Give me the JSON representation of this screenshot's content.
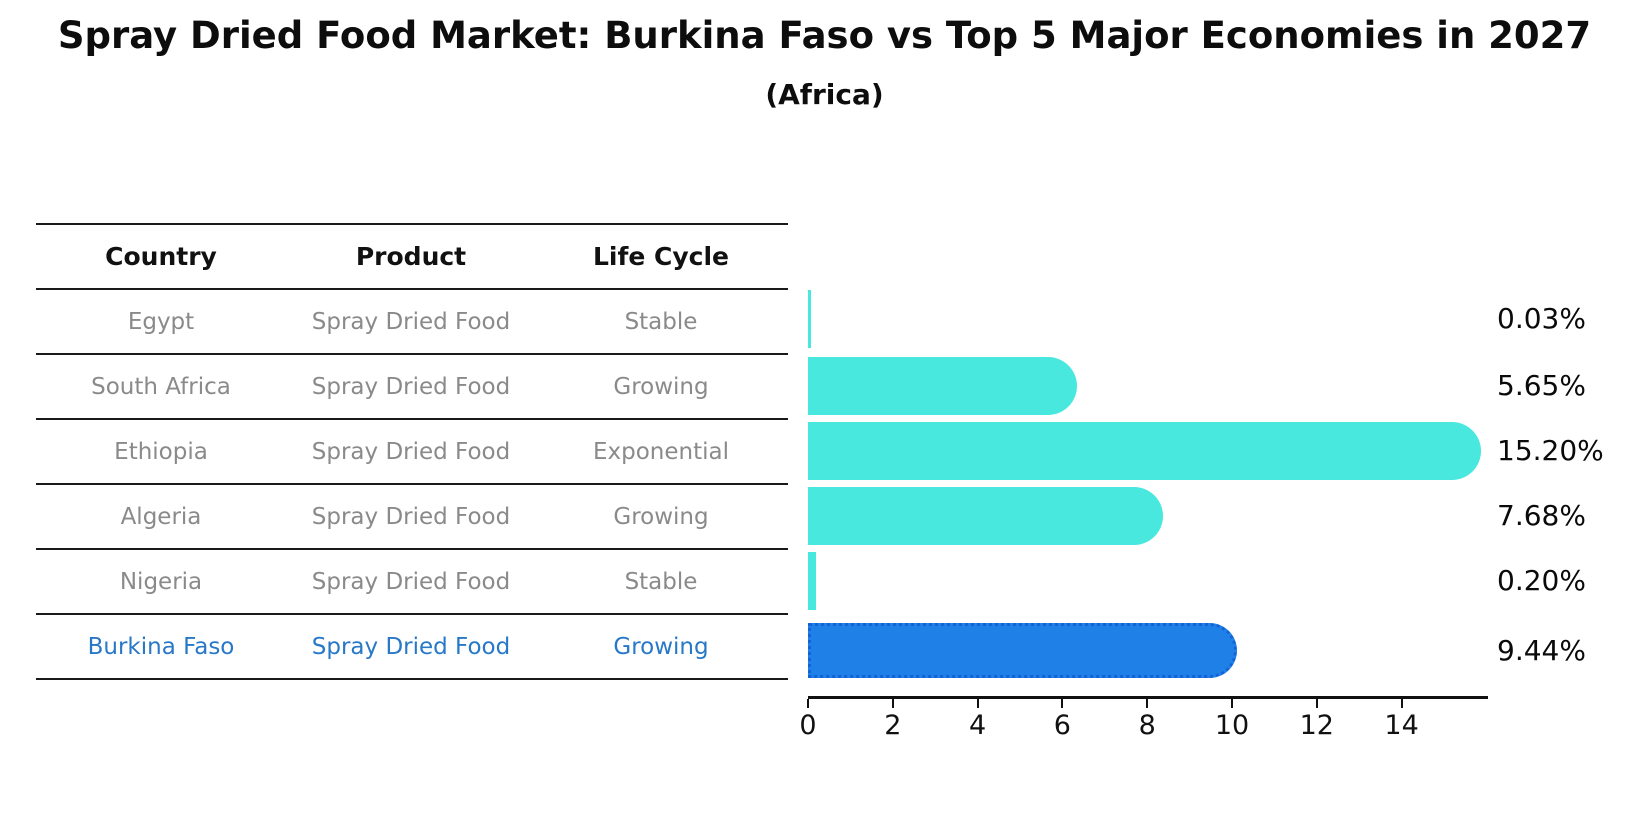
{
  "title": "Spray Dried Food Market: Burkina Faso vs Top 5 Major Economies in 2027",
  "subtitle": "(Africa)",
  "table": {
    "headers": [
      "Country",
      "Product",
      "Life Cycle"
    ],
    "rows": [
      {
        "country": "Egypt",
        "product": "Spray Dried Food",
        "life_cycle": "Stable",
        "highlight": false
      },
      {
        "country": "South Africa",
        "product": "Spray Dried Food",
        "life_cycle": "Growing",
        "highlight": false
      },
      {
        "country": "Ethiopia",
        "product": "Spray Dried Food",
        "life_cycle": "Exponential",
        "highlight": false
      },
      {
        "country": "Algeria",
        "product": "Spray Dried Food",
        "life_cycle": "Growing",
        "highlight": false
      },
      {
        "country": "Nigeria",
        "product": "Spray Dried Food",
        "life_cycle": "Stable",
        "highlight": false
      },
      {
        "country": "Burkina Faso",
        "product": "Spray Dried Food",
        "life_cycle": "Growing",
        "highlight": true
      }
    ]
  },
  "chart_data": {
    "type": "bar",
    "orientation": "horizontal",
    "categories": [
      "Egypt",
      "South Africa",
      "Ethiopia",
      "Algeria",
      "Nigeria",
      "Burkina Faso"
    ],
    "values": [
      0.03,
      5.65,
      15.2,
      7.68,
      0.2,
      9.44
    ],
    "value_labels": [
      "0.03%",
      "5.65%",
      "15.20%",
      "7.68%",
      "0.20%",
      "9.44%"
    ],
    "highlight_index": 5,
    "xticks": [
      0,
      2,
      4,
      6,
      8,
      10,
      12,
      14
    ],
    "xtick_labels": [
      "0",
      "2",
      "4",
      "6",
      "8",
      "10",
      "12",
      "14"
    ],
    "xlim": [
      0,
      16
    ],
    "grid": false,
    "legend": "none",
    "bar_color": "#48e8de",
    "highlight_bar_color": "#1f80e8",
    "highlight_bar_edge_color": "#1463d6",
    "highlight_text_color": "#2878c8",
    "table_text_color": "#8a8a8a",
    "axis_color": "#111111"
  }
}
